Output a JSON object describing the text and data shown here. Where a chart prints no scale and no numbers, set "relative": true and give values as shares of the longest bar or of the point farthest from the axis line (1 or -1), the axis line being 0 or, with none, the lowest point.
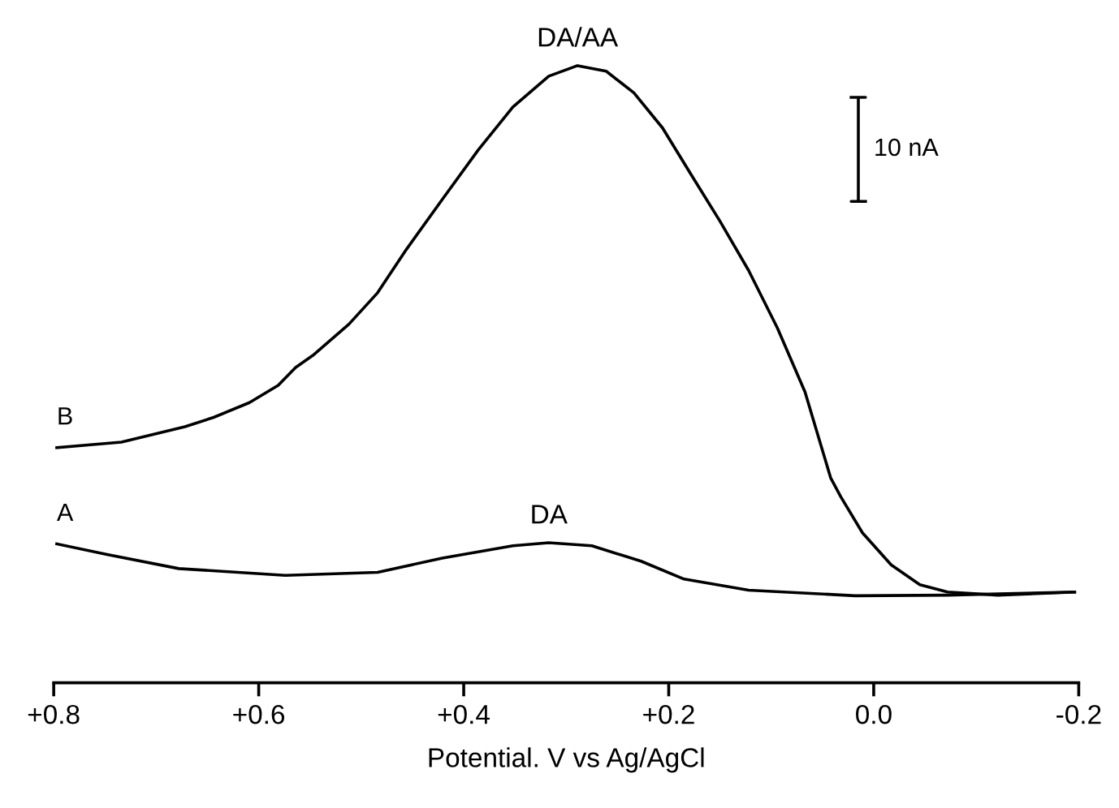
{
  "chart_data": {
    "type": "line",
    "relative": true,
    "xlabel": "Potential. V vs Ag/AgCl",
    "xlim": [
      0.8,
      -0.2
    ],
    "xticks": [
      {
        "value": 0.8,
        "label": "+0.8"
      },
      {
        "value": 0.6,
        "label": "+0.6"
      },
      {
        "value": 0.4,
        "label": "+0.4"
      },
      {
        "value": 0.2,
        "label": "+0.2"
      },
      {
        "value": 0.0,
        "label": "0.0"
      },
      -0.2
    ],
    "tick_labels": "x",
    "grid": false,
    "legend": false,
    "marker": "none",
    "line_style": "solid",
    "annotations": [
      {
        "text": "DA/AA",
        "x": 0.289,
        "y": 1.0
      },
      {
        "text": "DA",
        "x": 0.317,
        "y": 0.227
      },
      "10 nA"
    ],
    "series": [
      {
        "name": "B",
        "color": "#000000",
        "x": [
          0.797,
          0.734,
          0.672,
          0.644,
          0.609,
          0.581,
          0.564,
          0.546,
          0.512,
          0.484,
          0.456,
          0.421,
          0.386,
          0.352,
          0.317,
          0.289,
          0.261,
          0.234,
          0.206,
          0.178,
          0.15,
          0.122,
          0.094,
          0.067,
          0.042,
          0.032,
          0.011,
          -0.017,
          -0.045,
          -0.072,
          -0.121,
          -0.196
        ],
        "values": [
          0.381,
          0.39,
          0.415,
          0.43,
          0.454,
          0.482,
          0.511,
          0.532,
          0.581,
          0.632,
          0.702,
          0.783,
          0.863,
          0.933,
          0.983,
          1.0,
          0.991,
          0.956,
          0.899,
          0.823,
          0.748,
          0.668,
          0.575,
          0.471,
          0.332,
          0.301,
          0.243,
          0.191,
          0.159,
          0.147,
          0.142,
          0.147
        ]
      },
      {
        "name": "A",
        "color": "#000000",
        "x": [
          0.797,
          0.748,
          0.678,
          0.574,
          0.484,
          0.421,
          0.352,
          0.317,
          0.275,
          0.227,
          0.185,
          0.122,
          0.018,
          -0.072,
          -0.196
        ],
        "values": [
          0.225,
          0.208,
          0.185,
          0.174,
          0.179,
          0.202,
          0.222,
          0.227,
          0.222,
          0.197,
          0.168,
          0.15,
          0.141,
          0.142,
          0.147
        ]
      }
    ]
  }
}
